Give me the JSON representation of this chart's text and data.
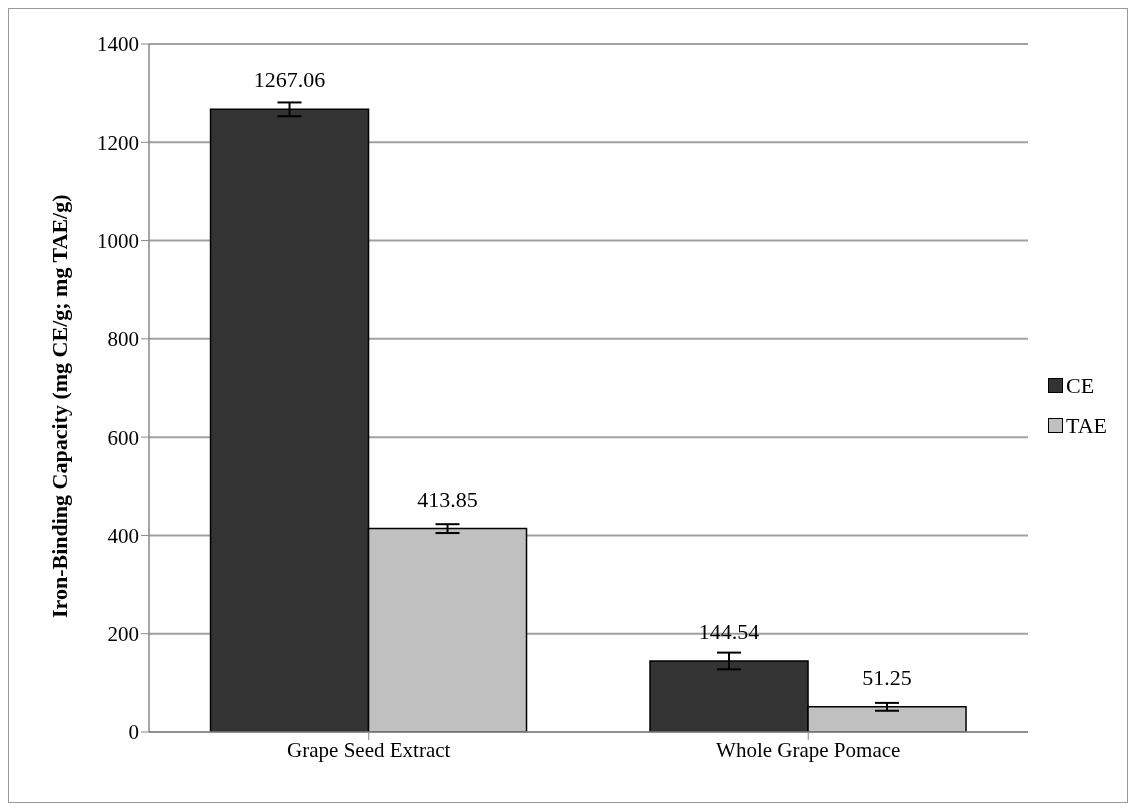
{
  "chart_data": {
    "type": "bar",
    "ylabel": "Iron-Binding Capacity (mg CE/g; mg TAE/g)",
    "categories": [
      "Grape Seed Extract",
      "Whole Grape Pomace"
    ],
    "series": [
      {
        "name": "CE",
        "color": "#333333",
        "values": [
          1267.06,
          144.54
        ],
        "errors": [
          14,
          17
        ]
      },
      {
        "name": "TAE",
        "color": "#c0c0c0",
        "values": [
          413.85,
          51.25
        ],
        "errors": [
          9,
          8
        ]
      }
    ],
    "ylim": [
      0,
      1400
    ],
    "yticks": [
      0,
      200,
      400,
      600,
      800,
      1000,
      1200,
      1400
    ],
    "grid": "y",
    "legend": "right",
    "data_labels": true
  }
}
